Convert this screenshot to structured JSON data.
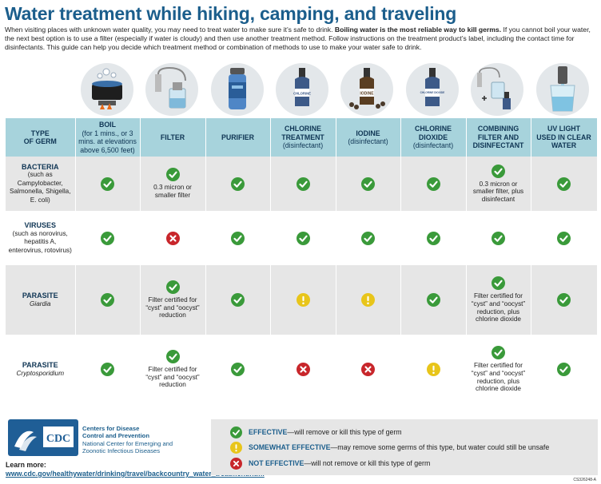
{
  "title": "Water treatment while hiking, camping, and traveling",
  "intro": {
    "p1": "When visiting places with unknown water quality, you may need to treat water to make sure it’s safe to drink.",
    "bold": "Boiling water is the most reliable way to kill germs.",
    "p2": "If you cannot boil your water, the next best option is to use a filter (especially if water is cloudy) and then use another treatment method. Follow instructions on the treatment product’s label, including the contact time for disinfectants. This guide can help you decide which treatment method or combination of methods to use to make your water safe to drink."
  },
  "icons": [
    {
      "name": "boiling-pot-icon",
      "label": ""
    },
    {
      "name": "filter-device-icon",
      "label": ""
    },
    {
      "name": "purifier-bottle-icon",
      "label": ""
    },
    {
      "name": "chlorine-bottle-icon",
      "label": "CHLORINE"
    },
    {
      "name": "iodine-bottle-icon",
      "label": "IODINE"
    },
    {
      "name": "chlorine-dioxide-bottle-icon",
      "label": "CHLORINE DIOXIDE"
    },
    {
      "name": "filter-plus-disinfectant-icon",
      "label": ""
    },
    {
      "name": "uv-light-icon",
      "label": ""
    }
  ],
  "headers": [
    {
      "line1": "TYPE",
      "line2": "OF GERM",
      "sub": ""
    },
    {
      "line1": "BOIL",
      "line2": "",
      "sub": "(for 1 mins., or 3 mins. at elevations above 6,500 feet)"
    },
    {
      "line1": "FILTER",
      "line2": "",
      "sub": ""
    },
    {
      "line1": "PURIFIER",
      "line2": "",
      "sub": ""
    },
    {
      "line1": "CHLORINE",
      "line2": "TREATMENT",
      "sub": "(disinfectant)"
    },
    {
      "line1": "IODINE",
      "line2": "",
      "sub": "(disinfectant)"
    },
    {
      "line1": "CHLORINE",
      "line2": "DIOXIDE",
      "sub": "(disinfectant)"
    },
    {
      "line1": "COMBINING",
      "line2": "FILTER AND DISINFECTANT",
      "sub": ""
    },
    {
      "line1": "UV LIGHT",
      "line2": "USED IN CLEAR WATER",
      "sub": ""
    }
  ],
  "rows": [
    {
      "name": "BACTERIA",
      "detail": "(such as Campylobacter, Salmonella, Shigella, E. coli)",
      "cells": [
        {
          "status": "effective",
          "note": ""
        },
        {
          "status": "effective",
          "note": "0.3 micron or smaller filter"
        },
        {
          "status": "effective",
          "note": ""
        },
        {
          "status": "effective",
          "note": ""
        },
        {
          "status": "effective",
          "note": ""
        },
        {
          "status": "effective",
          "note": ""
        },
        {
          "status": "effective",
          "note": "0.3 micron or smaller filter, plus disinfectant"
        },
        {
          "status": "effective",
          "note": ""
        }
      ]
    },
    {
      "name": "VIRUSES",
      "detail": "(such as norovirus, hepatitis A, enterovirus, rotovirus)",
      "cells": [
        {
          "status": "effective",
          "note": ""
        },
        {
          "status": "not",
          "note": ""
        },
        {
          "status": "effective",
          "note": ""
        },
        {
          "status": "effective",
          "note": ""
        },
        {
          "status": "effective",
          "note": ""
        },
        {
          "status": "effective",
          "note": ""
        },
        {
          "status": "effective",
          "note": ""
        },
        {
          "status": "effective",
          "note": ""
        }
      ]
    },
    {
      "name": "PARASITE",
      "detail": "Giardia",
      "cells": [
        {
          "status": "effective",
          "note": ""
        },
        {
          "status": "effective",
          "note": "Filter certified for “cyst” and “oocyst” reduction"
        },
        {
          "status": "effective",
          "note": ""
        },
        {
          "status": "somewhat",
          "note": ""
        },
        {
          "status": "somewhat",
          "note": ""
        },
        {
          "status": "effective",
          "note": ""
        },
        {
          "status": "effective",
          "note": "Filter certified for “cyst” and “oocyst” reduction, plus chlorine dioxide"
        },
        {
          "status": "effective",
          "note": ""
        }
      ]
    },
    {
      "name": "PARASITE",
      "detail": "Cryptosporidium",
      "cells": [
        {
          "status": "effective",
          "note": ""
        },
        {
          "status": "effective",
          "note": "Filter certified for “cyst” and “oocyst” reduction"
        },
        {
          "status": "effective",
          "note": ""
        },
        {
          "status": "not",
          "note": ""
        },
        {
          "status": "not",
          "note": ""
        },
        {
          "status": "somewhat",
          "note": ""
        },
        {
          "status": "effective",
          "note": "Filter certified for “cyst” and “oocyst” reduction, plus chlorine dioxide"
        },
        {
          "status": "effective",
          "note": ""
        }
      ]
    }
  ],
  "legend": [
    {
      "status": "effective",
      "term": "EFFECTIVE",
      "text": "—will remove or kill this type of germ"
    },
    {
      "status": "somewhat",
      "term": "SOMEWHAT EFFECTIVE",
      "text": "—may remove some germs of this type, but water could still be unsafe"
    },
    {
      "status": "not",
      "term": "NOT EFFECTIVE",
      "text": "—will not remove or kill this type of germ"
    }
  ],
  "cdc": {
    "logo_text": "CDC",
    "org_line1": "Centers for Disease",
    "org_line2": "Control and Prevention",
    "center_line1": "National Center for Emerging and",
    "center_line2": "Zoonotic Infectious Diseases"
  },
  "learn_more": {
    "label": "Learn more:",
    "url": "www.cdc.gov/healthywater/drinking/travel/backcountry_water_treatment.html"
  },
  "doc_code": "CS326248-A",
  "colors": {
    "title": "#1b5e8c",
    "header_bg": "#a7d3dc",
    "effective": "#3a9a3a",
    "somewhat": "#e8c51a",
    "not_effective": "#c8262b",
    "legend_bg": "#e6e6e6",
    "cdc_blue": "#1f5e96"
  }
}
